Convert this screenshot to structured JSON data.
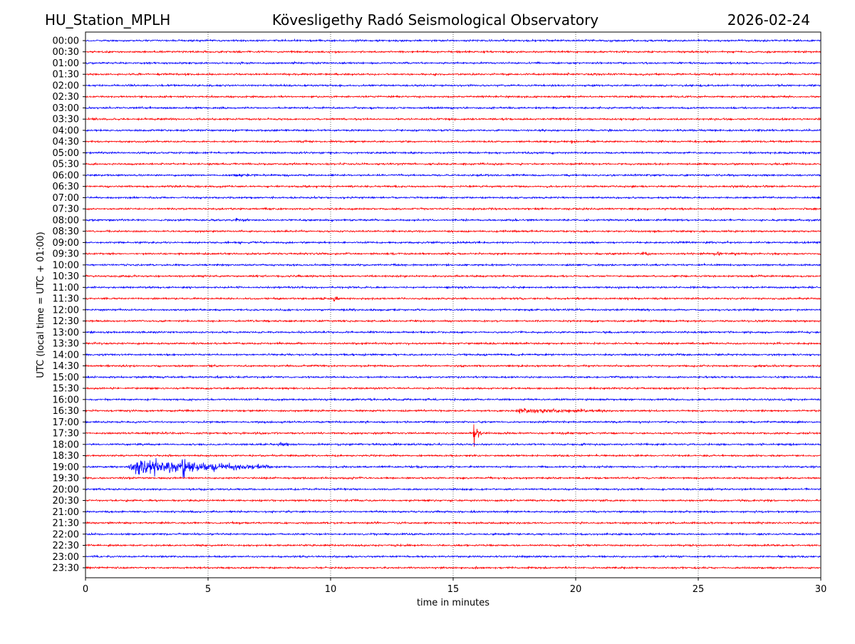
{
  "header": {
    "station": "HU_Station_MPLH",
    "title": "Kövesligethy Radó Seismological Observatory",
    "date": "2026-02-24"
  },
  "chart_data": {
    "type": "line",
    "subtype": "helicorder",
    "title": "Kövesligethy Radó Seismological Observatory",
    "xlabel": "time in minutes",
    "ylabel": "UTC (local time = UTC + 01:00)",
    "xlim": [
      0,
      30
    ],
    "x_ticks": [
      "0",
      "5",
      "10",
      "15",
      "20",
      "25",
      "30"
    ],
    "x_tick_values": [
      0,
      5,
      10,
      15,
      20,
      25,
      30
    ],
    "grid": "vertical dotted at x ticks",
    "row_labels": [
      "00:00",
      "00:30",
      "01:00",
      "01:30",
      "02:00",
      "02:30",
      "03:00",
      "03:30",
      "04:00",
      "04:30",
      "05:00",
      "05:30",
      "06:00",
      "06:30",
      "07:00",
      "07:30",
      "08:00",
      "08:30",
      "09:00",
      "09:30",
      "10:00",
      "10:30",
      "11:00",
      "11:30",
      "12:00",
      "12:30",
      "13:00",
      "13:30",
      "14:00",
      "14:30",
      "15:00",
      "15:30",
      "16:00",
      "16:30",
      "17:00",
      "17:30",
      "18:00",
      "18:30",
      "19:00",
      "19:30",
      "20:00",
      "20:30",
      "21:00",
      "21:30",
      "22:00",
      "22:30",
      "23:00",
      "23:30"
    ],
    "trace_colors": [
      "#0000ff",
      "#ff0000"
    ],
    "background_noise_relative_amplitude": 0.1,
    "events": [
      {
        "row": "04:30",
        "start_min": 19.8,
        "end_min": 20.0,
        "relative_amplitude": 0.2
      },
      {
        "row": "06:00",
        "start_min": 6.0,
        "end_min": 7.0,
        "relative_amplitude": 0.15
      },
      {
        "row": "08:00",
        "start_min": 6.1,
        "end_min": 6.7,
        "relative_amplitude": 0.45
      },
      {
        "row": "09:30",
        "start_min": 22.7,
        "end_min": 23.2,
        "relative_amplitude": 0.25
      },
      {
        "row": "09:30",
        "start_min": 25.6,
        "end_min": 26.8,
        "relative_amplitude": 0.2
      },
      {
        "row": "11:30",
        "start_min": 9.55,
        "end_min": 9.8,
        "relative_amplitude": 0.85
      },
      {
        "row": "11:30",
        "start_min": 10.1,
        "end_min": 10.35,
        "relative_amplitude": 0.7
      },
      {
        "row": "16:00",
        "start_min": 11.55,
        "end_min": 11.75,
        "relative_amplitude": 0.35
      },
      {
        "row": "16:30",
        "start_min": 17.5,
        "end_min": 21.5,
        "relative_amplitude": 0.35
      },
      {
        "row": "17:30",
        "start_min": 15.8,
        "end_min": 16.3,
        "relative_amplitude": 1.5
      },
      {
        "row": "18:00",
        "start_min": 7.8,
        "end_min": 8.6,
        "relative_amplitude": 0.25
      },
      {
        "row": "19:00",
        "start_min": 1.7,
        "end_min": 7.5,
        "relative_amplitude": 1.5
      },
      {
        "row": "19:00",
        "start_min": 3.9,
        "end_min": 4.2,
        "relative_amplitude": 2.0
      }
    ]
  }
}
